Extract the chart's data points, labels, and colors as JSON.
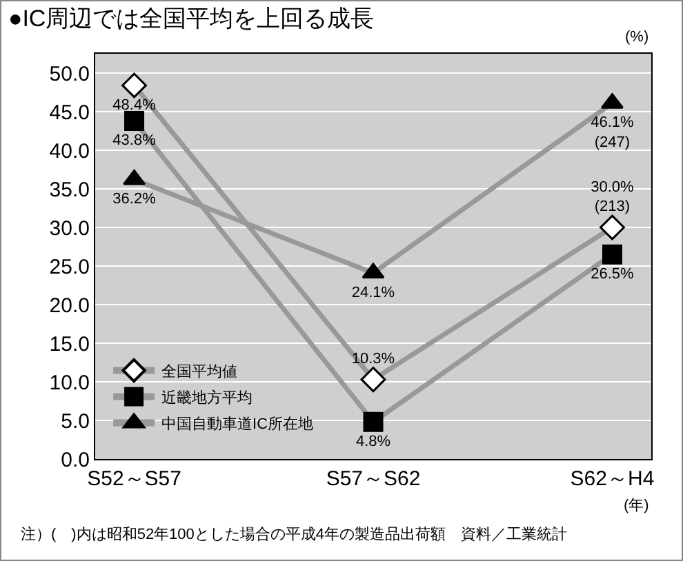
{
  "chart_data": {
    "type": "line",
    "title": "●IC周辺では全国平均を上回る成長",
    "ylabel": "(%)",
    "xlabel": "(年)",
    "categories": [
      "S52～S57",
      "S57～S62",
      "S62～H4"
    ],
    "series": [
      {
        "name": "全国平均値",
        "color": "#ffffff",
        "marker": "diamond",
        "values": [
          48.4,
          10.3,
          30.0
        ],
        "value_labels": [
          "48.4%",
          "10.3%",
          "30.0%\n(213)"
        ]
      },
      {
        "name": "近畿地方平均",
        "color": "#000000",
        "marker": "square",
        "values": [
          43.8,
          4.8,
          26.5
        ],
        "value_labels": [
          "43.8%",
          "4.8%",
          "26.5%"
        ]
      },
      {
        "name": "中国自動車道IC所在地",
        "color": "#000000",
        "marker": "triangle",
        "values": [
          36.2,
          24.1,
          46.1
        ],
        "value_labels": [
          "36.2%",
          "24.1%",
          "46.1%\n(247)"
        ]
      }
    ],
    "ylim": [
      0,
      52.5
    ],
    "yticks": [
      {
        "value": 0,
        "label": "0.0"
      },
      {
        "value": 5,
        "label": "5.0"
      },
      {
        "value": 10,
        "label": "10.0"
      },
      {
        "value": 15,
        "label": "15.0"
      },
      {
        "value": 20,
        "label": "20.0"
      },
      {
        "value": 25,
        "label": "25.0"
      },
      {
        "value": 30,
        "label": "30.0"
      },
      {
        "value": 35,
        "label": "35.0"
      },
      {
        "value": 40,
        "label": "40.0"
      },
      {
        "value": 45,
        "label": "45.0"
      },
      {
        "value": 50,
        "label": "50.0"
      }
    ],
    "grid": "y",
    "legend": "bottom left",
    "line_style": "solid",
    "annotations": [
      "注）(　)内は昭和52年100とした場合の平成4年の製造品出荷額　資料／工業統計"
    ]
  }
}
